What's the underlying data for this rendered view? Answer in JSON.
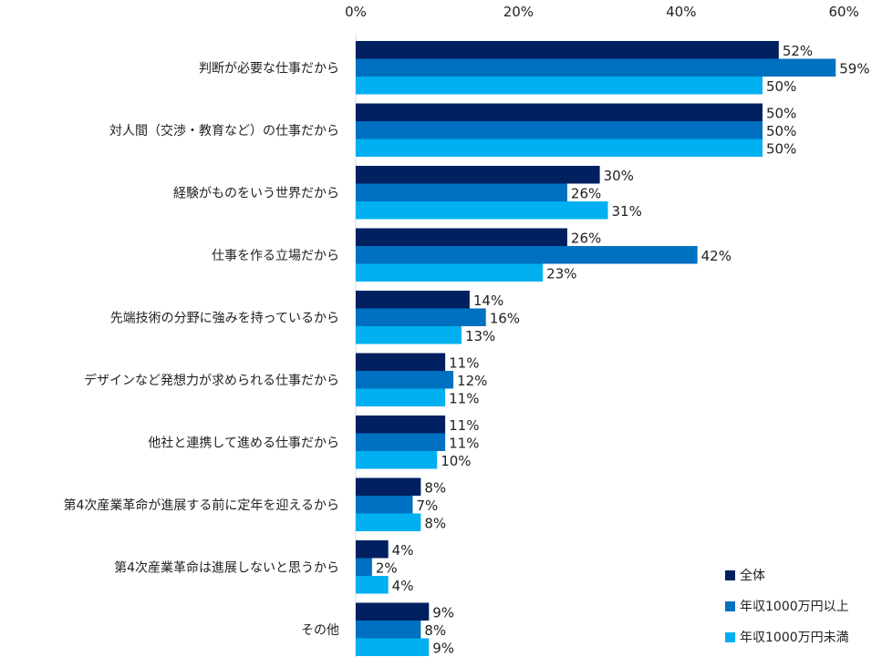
{
  "chart_data": {
    "type": "bar",
    "orientation": "horizontal",
    "title": "",
    "xlim": [
      0,
      60
    ],
    "x_ticks": [
      "0%",
      "20%",
      "40%",
      "60%"
    ],
    "categories": [
      "判断が必要な仕事だから",
      "対人間（交渉・教育など）の仕事だから",
      "経験がものをいう世界だから",
      "仕事を作る立場だから",
      "先端技術の分野に強みを持っているから",
      "デザインなど発想力が求められる仕事だから",
      "他社と連携して進める仕事だから",
      "第4次産業革命が進展する前に定年を迎えるから",
      "第4次産業革命は進展しないと思うから",
      "その他"
    ],
    "series": [
      {
        "name": "全体",
        "color": "#002060",
        "values": [
          52,
          50,
          30,
          26,
          14,
          11,
          11,
          8,
          4,
          9
        ],
        "labels": [
          "52%",
          "50%",
          "30%",
          "26%",
          "14%",
          "11%",
          "11%",
          "8%",
          "4%",
          "9%"
        ]
      },
      {
        "name": "年収1000万円以上",
        "color": "#0070C0",
        "values": [
          59,
          50,
          26,
          42,
          16,
          12,
          11,
          7,
          2,
          8
        ],
        "labels": [
          "59%",
          "50%",
          "26%",
          "42%",
          "16%",
          "12%",
          "11%",
          "7%",
          "2%",
          "8%"
        ]
      },
      {
        "name": "年収1000万円未満",
        "color": "#00B0F0",
        "values": [
          50,
          50,
          31,
          23,
          13,
          11,
          10,
          8,
          4,
          9
        ],
        "labels": [
          "50%",
          "50%",
          "31%",
          "23%",
          "13%",
          "11%",
          "10%",
          "8%",
          "4%",
          "9%"
        ]
      }
    ],
    "grid": false,
    "legend_position": "bottom-right"
  }
}
